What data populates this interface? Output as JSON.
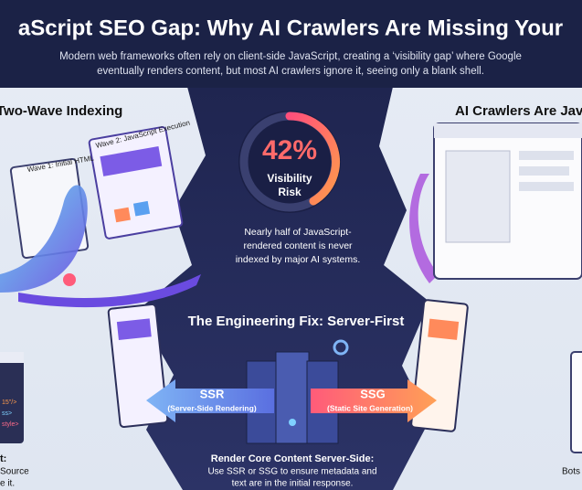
{
  "header": {
    "title": "aScript SEO Gap: Why AI Crawlers Are Missing Your",
    "subtitle": [
      "Modern web frameworks often rely on client-side JavaScript, creating a ‘visibility gap’ where Google",
      "eventually renders content, but most AI crawlers ignore it, seeing only a blank shell."
    ]
  },
  "left": {
    "title": "Two-Wave Indexing",
    "wave1": "Wave 1: Initial HTML",
    "wave2": "Wave 2: JavaScript Execution",
    "code": [
      "15\"/>",
      "ss>",
      "style>"
    ],
    "caption": [
      "t:",
      "Source",
      "e it."
    ]
  },
  "center": {
    "stat": "42%",
    "stat_label": [
      "Visibility",
      "Risk"
    ],
    "description": [
      "Nearly half of JavaScript-",
      "rendered content is never",
      "indexed by major AI systems."
    ]
  },
  "right": {
    "title": "AI Crawlers Are Jav",
    "caption": "Bots"
  },
  "fix": {
    "title": "The Engineering Fix: Server-First",
    "ssr": {
      "label": "SSR",
      "sub": "(Server-Side Rendering)"
    },
    "ssg": {
      "label": "SSG",
      "sub": "(Static Site Generation)"
    },
    "caption_title": "Render Core Content Server-Side:",
    "caption": [
      "Use SSR or SSG to ensure metadata and",
      "text are in the initial response."
    ]
  }
}
